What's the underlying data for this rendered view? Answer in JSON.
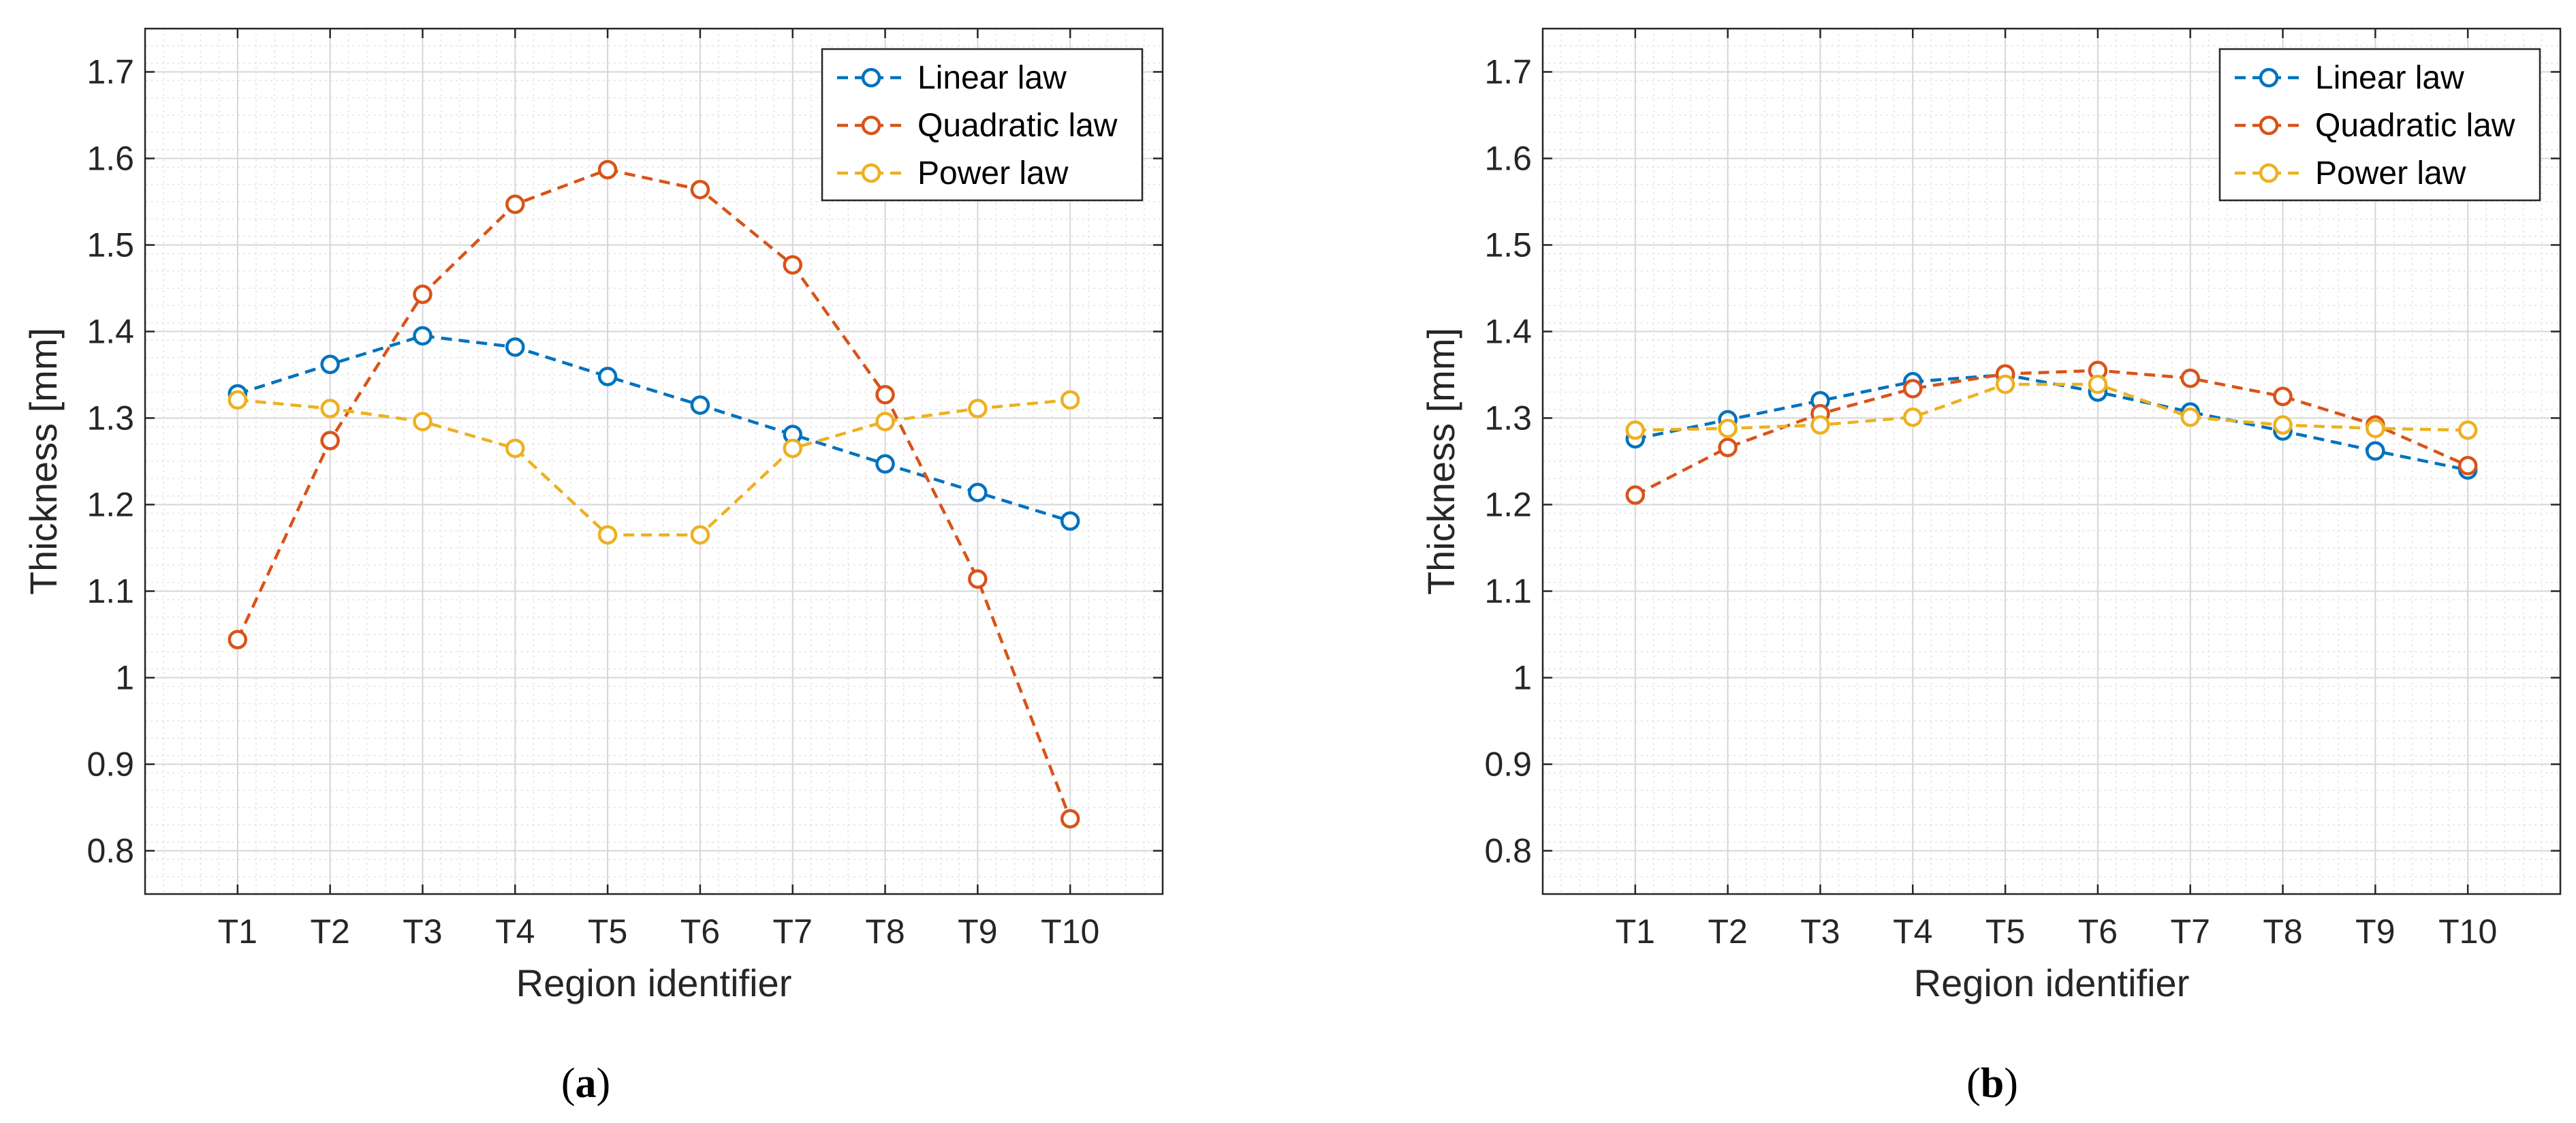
{
  "chart_data": [
    {
      "type": "line",
      "panel_label": "a",
      "caption_open": "(",
      "caption_close": ")",
      "xlabel": "Region identifier",
      "ylabel": "Thickness [mm]",
      "categories": [
        "T1",
        "T2",
        "T3",
        "T4",
        "T5",
        "T6",
        "T7",
        "T8",
        "T9",
        "T10"
      ],
      "ylim": [
        0.75,
        1.75
      ],
      "yticks": [
        0.8,
        0.9,
        1,
        1.1,
        1.2,
        1.3,
        1.4,
        1.5,
        1.6,
        1.7
      ],
      "ytick_labels": [
        "0.8",
        "0.9",
        "1",
        "1.1",
        "1.2",
        "1.3",
        "1.4",
        "1.5",
        "1.6",
        "1.7"
      ],
      "grid": true,
      "legend_position": "top-right",
      "series": [
        {
          "name": "Linear law",
          "color": "#0072BD",
          "values": [
            1.328,
            1.362,
            1.395,
            1.382,
            1.348,
            1.315,
            1.281,
            1.247,
            1.214,
            1.181
          ]
        },
        {
          "name": "Quadratic law",
          "color": "#D95319",
          "values": [
            1.044,
            1.274,
            1.443,
            1.547,
            1.587,
            1.564,
            1.477,
            1.327,
            1.114,
            0.837
          ]
        },
        {
          "name": "Power law",
          "color": "#EDB120",
          "values": [
            1.321,
            1.311,
            1.296,
            1.265,
            1.165,
            1.165,
            1.265,
            1.296,
            1.311,
            1.321
          ]
        }
      ]
    },
    {
      "type": "line",
      "panel_label": "b",
      "caption_open": "(",
      "caption_close": ")",
      "xlabel": "Region identifier",
      "ylabel": "Thickness [mm]",
      "categories": [
        "T1",
        "T2",
        "T3",
        "T4",
        "T5",
        "T6",
        "T7",
        "T8",
        "T9",
        "T10"
      ],
      "ylim": [
        0.75,
        1.75
      ],
      "yticks": [
        0.8,
        0.9,
        1,
        1.1,
        1.2,
        1.3,
        1.4,
        1.5,
        1.6,
        1.7
      ],
      "ytick_labels": [
        "0.8",
        "0.9",
        "1",
        "1.1",
        "1.2",
        "1.3",
        "1.4",
        "1.5",
        "1.6",
        "1.7"
      ],
      "grid": true,
      "legend_position": "top-right",
      "series": [
        {
          "name": "Linear law",
          "color": "#0072BD",
          "values": [
            1.276,
            1.298,
            1.32,
            1.342,
            1.35,
            1.33,
            1.307,
            1.285,
            1.262,
            1.24
          ]
        },
        {
          "name": "Quadratic law",
          "color": "#D95319",
          "values": [
            1.211,
            1.266,
            1.305,
            1.334,
            1.351,
            1.355,
            1.346,
            1.325,
            1.292,
            1.245
          ]
        },
        {
          "name": "Power law",
          "color": "#EDB120",
          "values": [
            1.286,
            1.288,
            1.292,
            1.301,
            1.339,
            1.339,
            1.301,
            1.292,
            1.288,
            1.286
          ]
        }
      ]
    }
  ]
}
